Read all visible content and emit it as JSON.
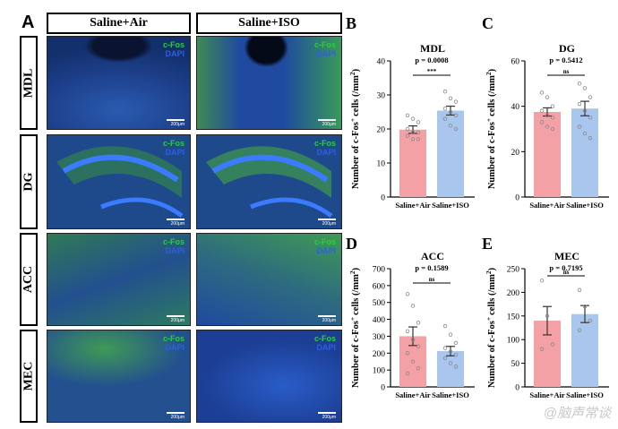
{
  "panel_a": {
    "letter": "A",
    "columns": [
      "Saline+Air",
      "Saline+ISO"
    ],
    "rows": [
      "MDL",
      "DG",
      "ACC",
      "MEC"
    ],
    "channel_labels": {
      "cfos": "c-Fos",
      "dapi": "DAPI"
    },
    "scale_bar_label": "200μm",
    "colors": {
      "cfos": "#2ecc40",
      "dapi": "#2e5fe0"
    }
  },
  "colors": {
    "air": "#f4a1a6",
    "iso": "#a9c6ef",
    "err": "#333333"
  },
  "ylabel_text": "Number of c-Fos",
  "ylabel_sup": "+",
  "ylabel_tail": "cells (/mm",
  "ylabel_sup2": "2",
  "ylabel_end": ")",
  "chart_data": [
    {
      "letter": "B",
      "type": "bar",
      "title": "MDL",
      "categories": [
        "Saline+Air",
        "Saline+ISO"
      ],
      "values": [
        19.8,
        25.4
      ],
      "errors": [
        1.1,
        1.3
      ],
      "ylim": [
        0,
        40
      ],
      "yticks": [
        0,
        10,
        20,
        30,
        40
      ],
      "points": [
        [
          24,
          23,
          22,
          20,
          19,
          19,
          18,
          17,
          17
        ],
        [
          31,
          29,
          28,
          26,
          25,
          24,
          23,
          21,
          20
        ]
      ],
      "pvalue": "p = 0.0008",
      "sig": "***"
    },
    {
      "letter": "C",
      "type": "bar",
      "title": "DG",
      "categories": [
        "Saline+Air",
        "Saline+ISO"
      ],
      "values": [
        37.5,
        39
      ],
      "errors": [
        1.8,
        3.2
      ],
      "ylim": [
        0,
        60
      ],
      "yticks": [
        0,
        20,
        40,
        60
      ],
      "points": [
        [
          46,
          44,
          40,
          38,
          36,
          35,
          33,
          31,
          30
        ],
        [
          50,
          48,
          44,
          41,
          38,
          35,
          31,
          28,
          26
        ]
      ],
      "pvalue": "p = 0.5412",
      "sig": "ns"
    },
    {
      "letter": "D",
      "type": "bar",
      "title": "ACC",
      "categories": [
        "Saline+Air",
        "Saline+ISO"
      ],
      "values": [
        300,
        212
      ],
      "errors": [
        55,
        28
      ],
      "ylim": [
        0,
        700
      ],
      "yticks": [
        0,
        100,
        200,
        300,
        400,
        500,
        600,
        700
      ],
      "points": [
        [
          550,
          480,
          380,
          330,
          280,
          240,
          200,
          150,
          110,
          80
        ],
        [
          360,
          310,
          260,
          230,
          210,
          190,
          170,
          140,
          120
        ]
      ],
      "pvalue": "p = 0.1589",
      "sig": "ns"
    },
    {
      "letter": "E",
      "type": "bar",
      "title": "MEC",
      "categories": [
        "Saline+Air",
        "Saline+ISO"
      ],
      "values": [
        140,
        154
      ],
      "errors": [
        30,
        18
      ],
      "ylim": [
        0,
        250
      ],
      "yticks": [
        0,
        50,
        100,
        150,
        200,
        250
      ],
      "points": [
        [
          225,
          150,
          90,
          80
        ],
        [
          205,
          170,
          140,
          120
        ]
      ],
      "pvalue": "p = 0.7195",
      "sig": "ns"
    }
  ],
  "watermark": "@脑声常谈"
}
